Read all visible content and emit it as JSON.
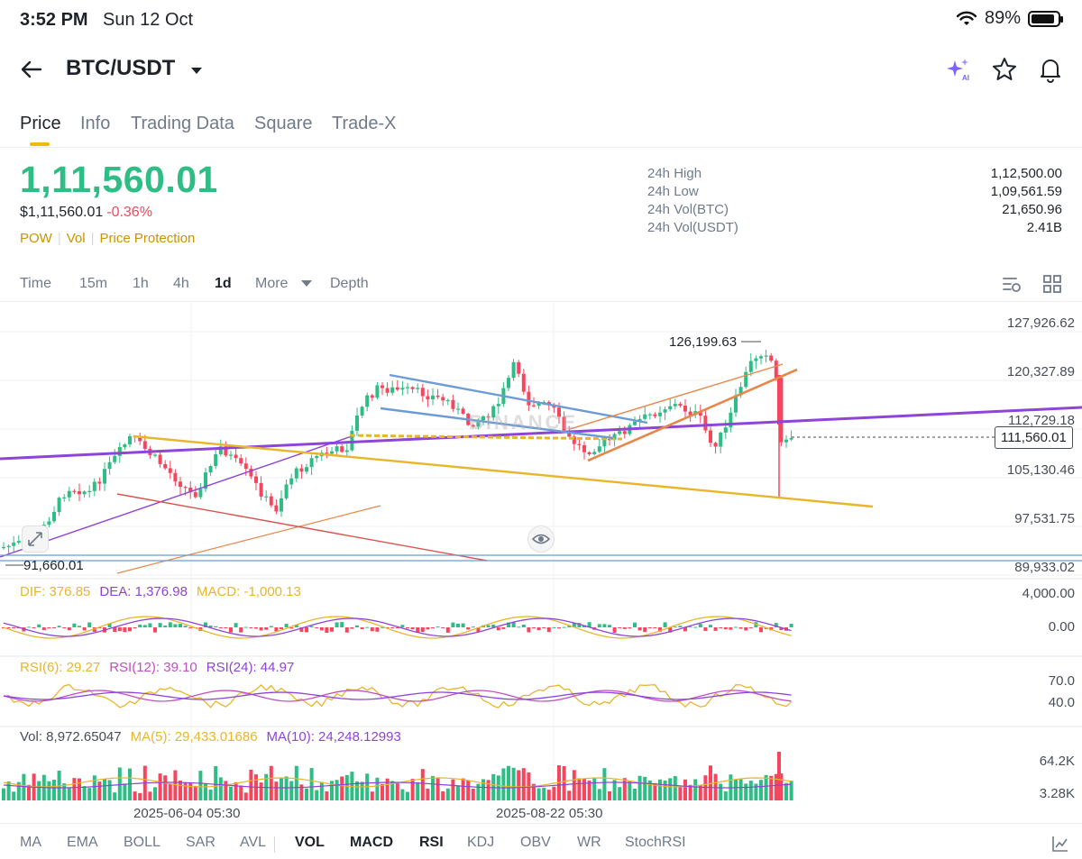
{
  "status": {
    "time": "3:52 PM",
    "date": "Sun 12 Oct",
    "battery": "89%"
  },
  "header": {
    "pair": "BTC/USDT",
    "icons": [
      "back-arrow-icon",
      "ai-sparkle-icon",
      "star-icon",
      "bell-icon"
    ]
  },
  "tabs": [
    "Price",
    "Info",
    "Trading Data",
    "Square",
    "Trade-X"
  ],
  "price": {
    "last": "1,11,560.01",
    "fiat": "$1,11,560.01",
    "change": "-0.36%",
    "tags": [
      "POW",
      "Vol",
      "Price Protection"
    ]
  },
  "stats": {
    "labels": [
      "24h High",
      "24h Low",
      "24h Vol(BTC)",
      "24h Vol(USDT)"
    ],
    "values": [
      "1,12,500.00",
      "1,09,561.59",
      "21,650.96",
      "2.41B"
    ]
  },
  "intervals": [
    "Time",
    "15m",
    "1h",
    "4h",
    "1d",
    "More",
    "Depth"
  ],
  "interval_active": "1d",
  "chart": {
    "price_axis": [
      "127,926.62",
      "120,327.89",
      "112,729.18",
      "105,130.46",
      "97,531.75",
      "89,933.02"
    ],
    "current_price_tag": "111,560.01",
    "peak_label": "126,199.63",
    "low_label": "91,660.01",
    "watermark": "BINANCE",
    "macd_legend": {
      "dif": "DIF: 376.85",
      "dea": "DEA: 1,376.98",
      "macd": "MACD: -1,000.13"
    },
    "macd_axis": [
      "4,000.00",
      "0.00"
    ],
    "rsi_legend": {
      "rsi6": "RSI(6): 29.27",
      "rsi12": "RSI(12): 39.10",
      "rsi24": "RSI(24): 44.97"
    },
    "rsi_axis": [
      "70.0",
      "40.0"
    ],
    "vol_legend": {
      "vol": "Vol: 8,972.65047",
      "ma5": "MA(5): 29,433.01686",
      "ma10": "MA(10): 24,248.12993"
    },
    "vol_axis": [
      "64.2K",
      "3.28K"
    ],
    "dates": [
      "2025-06-04 05:30",
      "2025-08-22 05:30"
    ]
  },
  "indicators": [
    "MA",
    "EMA",
    "BOLL",
    "SAR",
    "AVL",
    "VOL",
    "MACD",
    "RSI",
    "KDJ",
    "OBV",
    "WR",
    "StochRSI"
  ],
  "indicators_active": [
    "VOL",
    "MACD",
    "RSI"
  ],
  "colors": {
    "up": "#2ebd85",
    "down": "#f6465d",
    "accent": "#f0b90b",
    "purple": "#8e44d8",
    "yellow": "#e8b62a",
    "blue": "#6c9bd6",
    "orange": "#e8874a",
    "red_line": "#d9534f"
  }
}
